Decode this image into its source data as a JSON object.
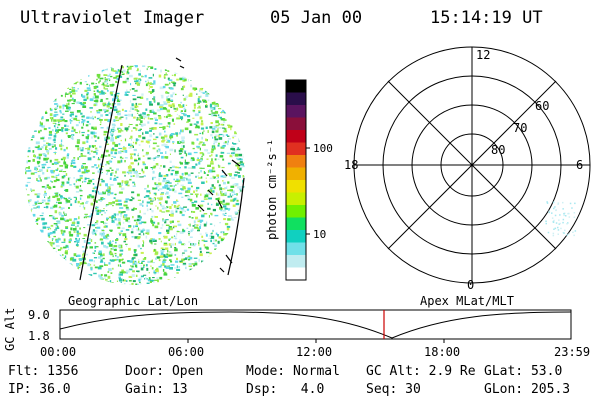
{
  "header": {
    "instrument": "Ultraviolet Imager",
    "date": "05 Jan 00",
    "time": "15:14:19 UT"
  },
  "colorbar": {
    "unit_label": "photon cm⁻²s⁻¹",
    "tick_labels": [
      "100",
      "10"
    ],
    "colors": [
      "#000000",
      "#2a0e4a",
      "#5a145f",
      "#8a0f3a",
      "#c00018",
      "#e03020",
      "#f08010",
      "#f0b000",
      "#f0e000",
      "#c8f000",
      "#70f000",
      "#10e060",
      "#10d0c0",
      "#70e0e8",
      "#c0ecf0",
      "#ffffff"
    ]
  },
  "polar_plot": {
    "mlt_labels": {
      "top": "12",
      "left": "18",
      "right": "6",
      "bottom": "0"
    },
    "lat_labels": [
      "60",
      "70",
      "80"
    ]
  },
  "timeline": {
    "left_title": "Geographic Lat/Lon",
    "right_title": "Apex MLat/MLT",
    "axis_label": "GC Alt",
    "y_ticks": [
      "9.0",
      "1.8"
    ],
    "x_ticks": [
      "00:00",
      "06:00",
      "12:00",
      "18:00",
      "23:59"
    ],
    "current_time_marker_color": "#cc0000"
  },
  "status": {
    "flt": "Flt: 1356",
    "ip": "IP: 36.0",
    "door": "Door: Open",
    "gain": "Gain: 13",
    "mode": "Mode: Normal",
    "dsp": "Dsp:   4.0",
    "gc_alt": "GC Alt: 2.9 Re",
    "seq": "Seq: 30",
    "glat": "GLat: 53.0",
    "glon": "GLon: 205.3"
  }
}
